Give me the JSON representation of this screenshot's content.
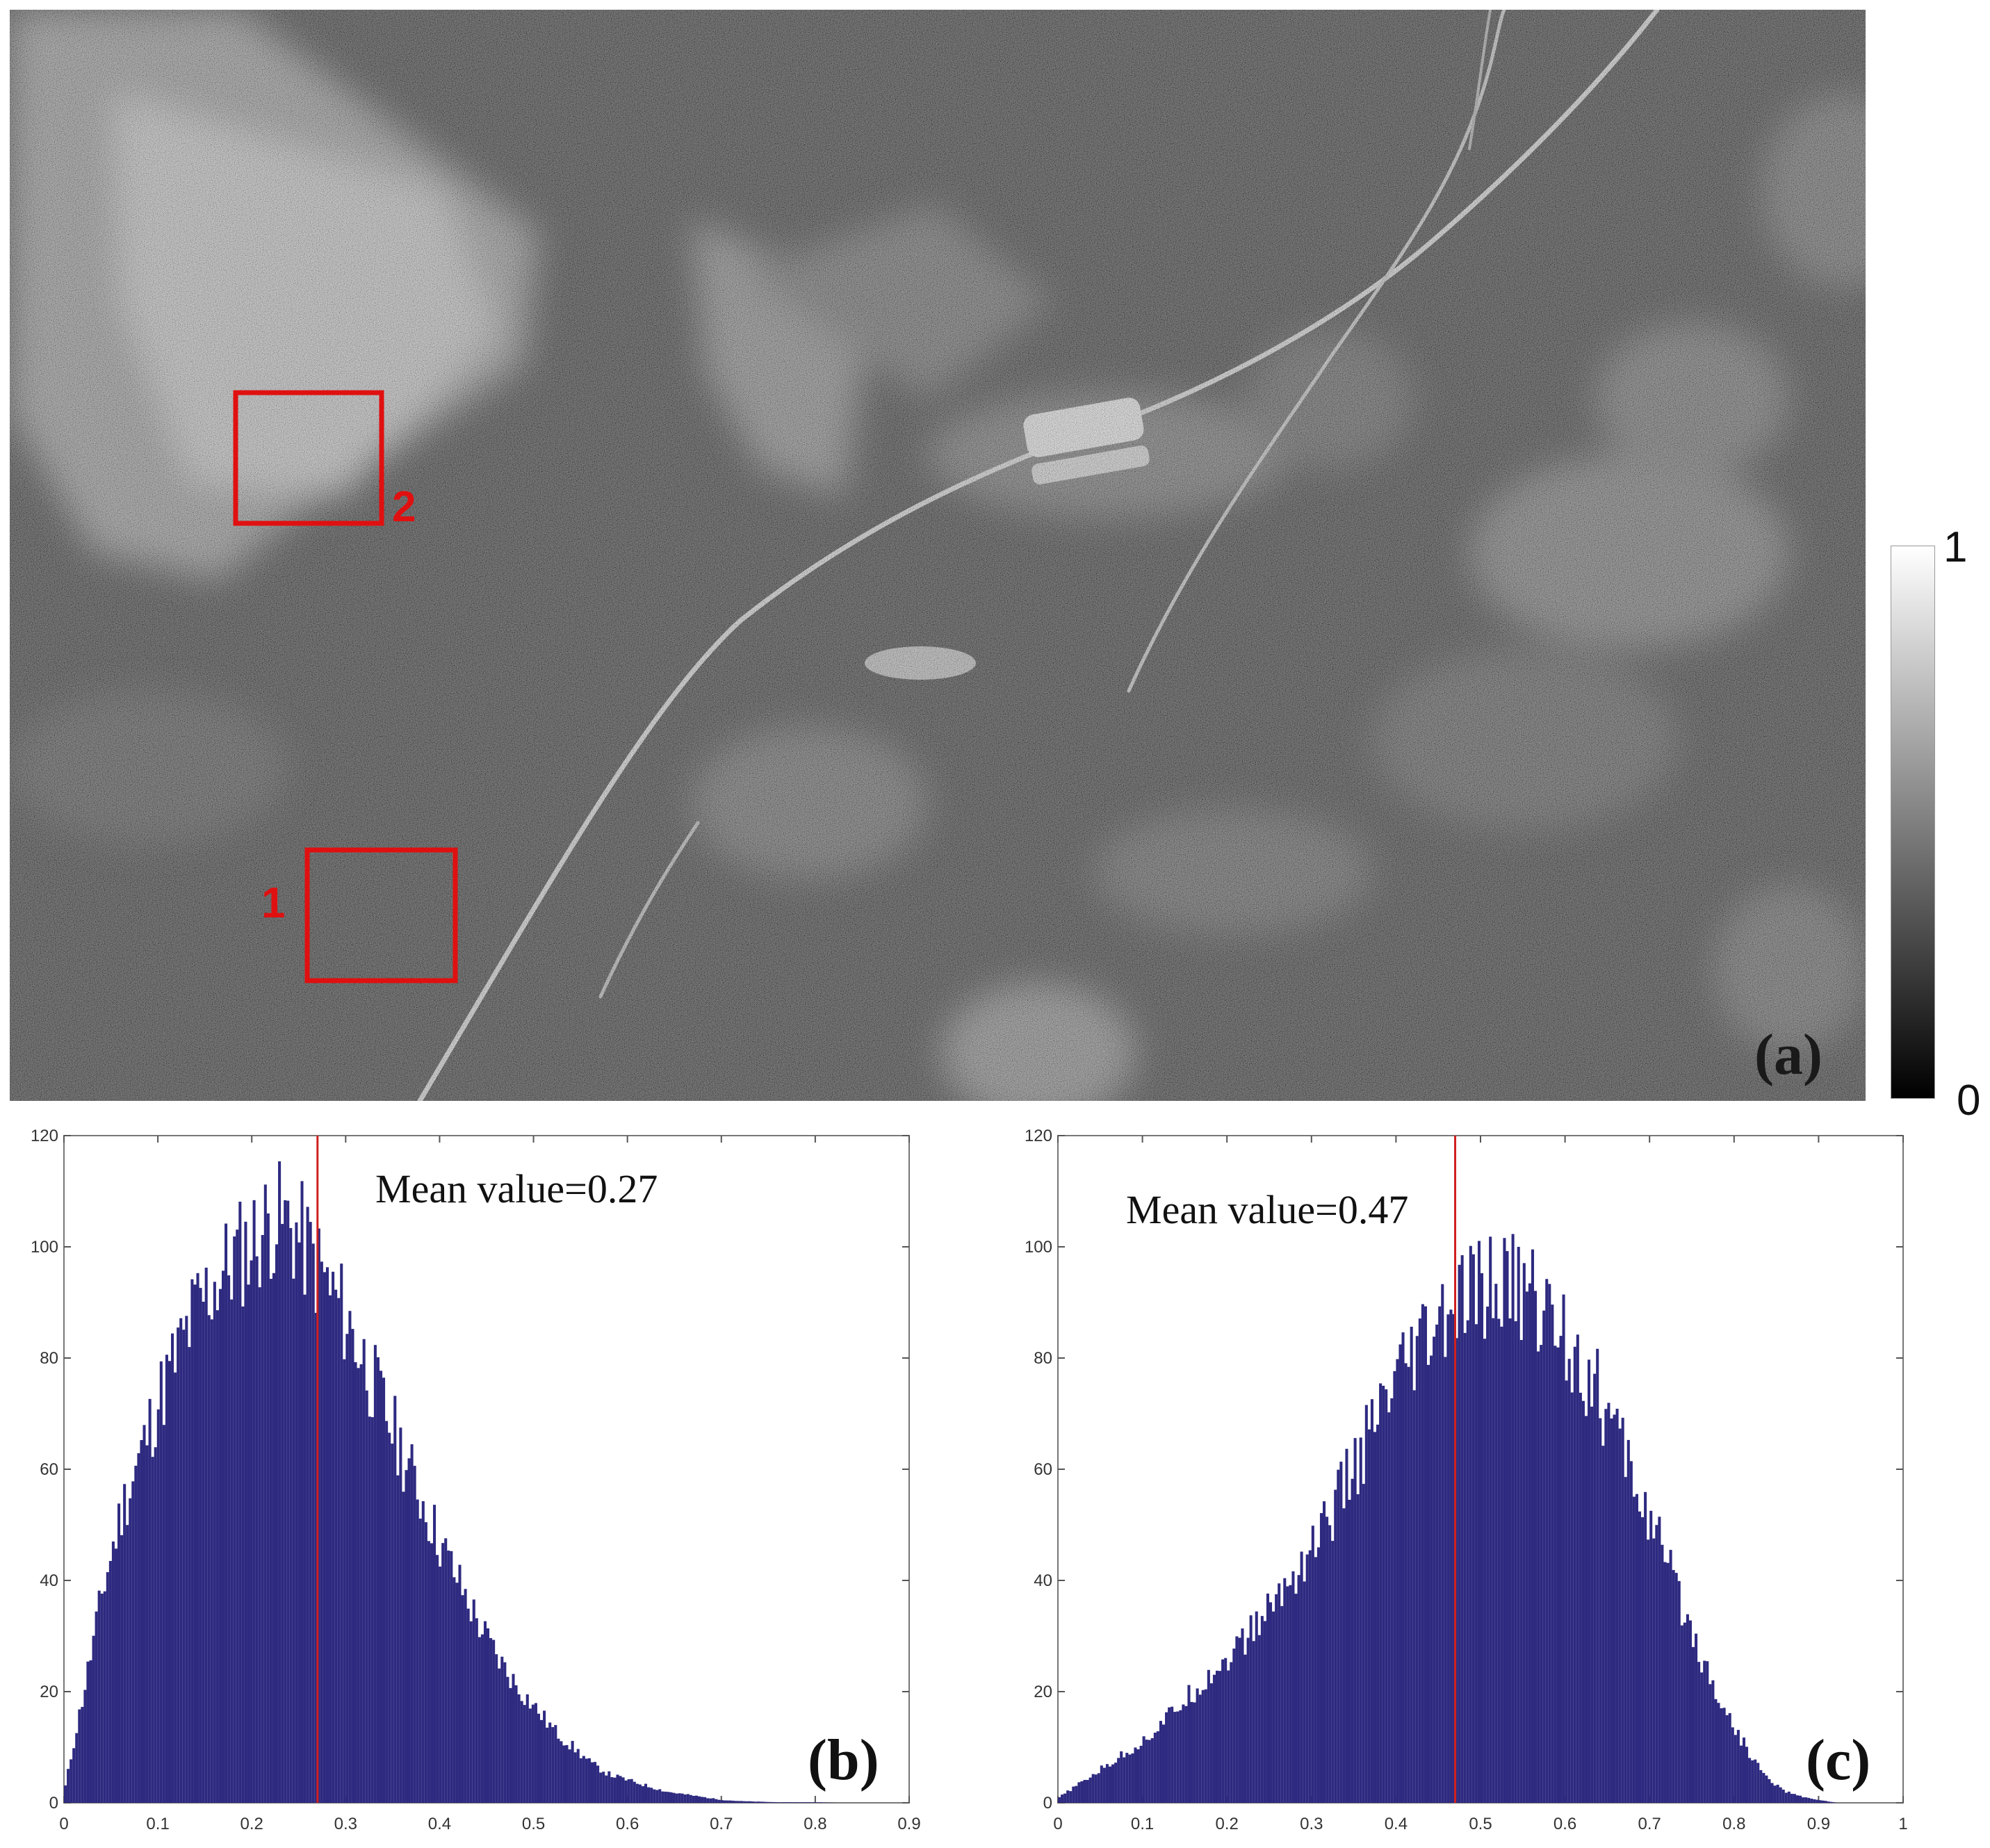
{
  "figure": {
    "panel_a": {
      "letter": "(a)",
      "roi_labels": [
        "1",
        "2"
      ],
      "roi_color": "#e01010",
      "colorbar": {
        "max_label": "1",
        "min_label": "0",
        "colormap": "gray"
      }
    }
  },
  "chart_data": [
    {
      "type": "bar",
      "panel": "(b)",
      "annotation": "Mean value=0.27",
      "mean": 0.27,
      "xlim": [
        0,
        0.9
      ],
      "ylim": [
        0,
        120
      ],
      "xticks": [
        "0",
        "0.1",
        "0.2",
        "0.3",
        "0.4",
        "0.5",
        "0.6",
        "0.7",
        "0.8",
        "0.9"
      ],
      "yticks": [
        "0",
        "20",
        "40",
        "60",
        "80",
        "100",
        "120"
      ],
      "bar_color": "#2e2a80",
      "mean_line_color": "#d02020",
      "x": [
        0.0,
        0.02,
        0.04,
        0.06,
        0.08,
        0.1,
        0.12,
        0.14,
        0.16,
        0.18,
        0.2,
        0.22,
        0.24,
        0.26,
        0.28,
        0.3,
        0.32,
        0.34,
        0.36,
        0.38,
        0.4,
        0.42,
        0.44,
        0.46,
        0.48,
        0.5,
        0.52,
        0.54,
        0.56,
        0.58,
        0.6,
        0.62,
        0.64,
        0.66,
        0.68,
        0.7,
        0.72,
        0.74,
        0.76,
        0.78,
        0.8,
        0.82,
        0.84,
        0.86,
        0.88,
        0.9
      ],
      "values": [
        3,
        20,
        38,
        52,
        62,
        72,
        80,
        88,
        93,
        97,
        100,
        104,
        103,
        98,
        92,
        86,
        78,
        70,
        62,
        54,
        46,
        39,
        32,
        26,
        21,
        17,
        13,
        10,
        7,
        5,
        4,
        3,
        2,
        1.5,
        1,
        0.5,
        0.3,
        0.2,
        0.1,
        0.1,
        0.1,
        0,
        0,
        0,
        0,
        0
      ]
    },
    {
      "type": "bar",
      "panel": "(c)",
      "annotation": "Mean value=0.47",
      "mean": 0.47,
      "xlim": [
        0,
        1
      ],
      "ylim": [
        0,
        120
      ],
      "xticks": [
        "0",
        "0.1",
        "0.2",
        "0.3",
        "0.4",
        "0.5",
        "0.6",
        "0.7",
        "0.8",
        "0.9",
        "1"
      ],
      "yticks": [
        "0",
        "20",
        "40",
        "60",
        "80",
        "100",
        "120"
      ],
      "bar_color": "#2e2a80",
      "mean_line_color": "#d02020",
      "x": [
        0.0,
        0.02,
        0.04,
        0.06,
        0.08,
        0.1,
        0.12,
        0.14,
        0.16,
        0.18,
        0.2,
        0.22,
        0.24,
        0.26,
        0.28,
        0.3,
        0.32,
        0.34,
        0.36,
        0.38,
        0.4,
        0.42,
        0.44,
        0.46,
        0.48,
        0.5,
        0.52,
        0.54,
        0.56,
        0.58,
        0.6,
        0.62,
        0.64,
        0.66,
        0.68,
        0.7,
        0.72,
        0.74,
        0.76,
        0.78,
        0.8,
        0.82,
        0.84,
        0.86,
        0.88,
        0.9,
        0.92,
        0.94,
        0.96,
        0.98,
        1.0
      ],
      "values": [
        1,
        3,
        5,
        7,
        9,
        11,
        14,
        17,
        20,
        23,
        26,
        29,
        33,
        37,
        41,
        46,
        51,
        57,
        63,
        69,
        74,
        79,
        83,
        86,
        89,
        91,
        92,
        92,
        90,
        87,
        83,
        78,
        72,
        65,
        58,
        50,
        42,
        34,
        26,
        19,
        13,
        8,
        4,
        2,
        1,
        0.5,
        0,
        0,
        0,
        0,
        0
      ]
    }
  ]
}
